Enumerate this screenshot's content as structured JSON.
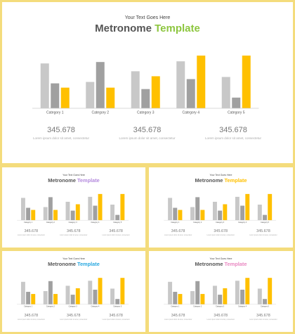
{
  "chart_data": [
    {
      "type": "bar",
      "subtitle": "Your Text Goes Here",
      "title": {
        "text": "Metronome",
        "accent": "Template",
        "accent_color": "#8dc63f"
      },
      "categories": [
        "Category 1",
        "Category 2",
        "Category 3",
        "Category 4",
        "Category 5"
      ],
      "series": [
        {
          "color": "#c8c8c8",
          "values": [
            63,
            37,
            52,
            66,
            44
          ]
        },
        {
          "color": "#a0a0a0",
          "values": [
            35,
            65,
            27,
            41,
            15
          ]
        },
        {
          "color": "#ffc000",
          "values": [
            29,
            29,
            45,
            74,
            74
          ]
        }
      ],
      "ylim": [
        0,
        80
      ],
      "notes": [
        {
          "number": "345.678",
          "text": "Lorem ipsum dolor sit amet, consectetur"
        },
        {
          "number": "345.678",
          "text": "Lorem ipsum dolor sit amet, consectetur"
        },
        {
          "number": "345.678",
          "text": "Lorem ipsum dolor sit amet, consectetur"
        }
      ]
    },
    {
      "type": "bar",
      "subtitle": "Your Text Goes Here",
      "title": {
        "text": "Metronome",
        "accent": "Template",
        "accent_color": "#b388dd"
      },
      "categories": [
        "Category 1",
        "Category 2",
        "Category 3",
        "Category 4",
        "Category 5"
      ],
      "series": [
        {
          "color": "#c8c8c8",
          "values": [
            63,
            37,
            52,
            66,
            44
          ]
        },
        {
          "color": "#a0a0a0",
          "values": [
            35,
            65,
            27,
            41,
            15
          ]
        },
        {
          "color": "#ffc000",
          "values": [
            29,
            29,
            45,
            74,
            74
          ]
        }
      ],
      "ylim": [
        0,
        80
      ],
      "notes": [
        {
          "number": "345.678",
          "text": "Lorem ipsum dolor sit amet, consectetur"
        },
        {
          "number": "345.678",
          "text": "Lorem ipsum dolor sit amet, consectetur"
        },
        {
          "number": "345.678",
          "text": "Lorem ipsum dolor sit amet, consectetur"
        }
      ]
    },
    {
      "type": "bar",
      "subtitle": "Your Text Goes Here",
      "title": {
        "text": "Metronome",
        "accent": "Template",
        "accent_color": "#ffc000"
      },
      "categories": [
        "Category 1",
        "Category 2",
        "Category 3",
        "Category 4",
        "Category 5"
      ],
      "series": [
        {
          "color": "#c8c8c8",
          "values": [
            63,
            37,
            52,
            66,
            44
          ]
        },
        {
          "color": "#a0a0a0",
          "values": [
            35,
            65,
            27,
            41,
            15
          ]
        },
        {
          "color": "#ffc000",
          "values": [
            29,
            29,
            45,
            74,
            74
          ]
        }
      ],
      "ylim": [
        0,
        80
      ],
      "notes": [
        {
          "number": "345.678",
          "text": "Lorem ipsum dolor sit amet, consectetur"
        },
        {
          "number": "345.678",
          "text": "Lorem ipsum dolor sit amet, consectetur"
        },
        {
          "number": "345.678",
          "text": "Lorem ipsum dolor sit amet, consectetur"
        }
      ]
    },
    {
      "type": "bar",
      "subtitle": "Your Text Goes Here",
      "title": {
        "text": "Metronome",
        "accent": "Template",
        "accent_color": "#29a8e0"
      },
      "categories": [
        "Category 1",
        "Category 2",
        "Category 3",
        "Category 4",
        "Category 5"
      ],
      "series": [
        {
          "color": "#c8c8c8",
          "values": [
            63,
            37,
            52,
            66,
            44
          ]
        },
        {
          "color": "#a0a0a0",
          "values": [
            35,
            65,
            27,
            41,
            15
          ]
        },
        {
          "color": "#ffc000",
          "values": [
            29,
            29,
            45,
            74,
            74
          ]
        }
      ],
      "ylim": [
        0,
        80
      ],
      "notes": [
        {
          "number": "345.678",
          "text": "Lorem ipsum dolor sit amet, consectetur"
        },
        {
          "number": "345.678",
          "text": "Lorem ipsum dolor sit amet, consectetur"
        },
        {
          "number": "345.678",
          "text": "Lorem ipsum dolor sit amet, consectetur"
        }
      ]
    },
    {
      "type": "bar",
      "subtitle": "Your Text Goes Here",
      "title": {
        "text": "Metronome",
        "accent": "Template",
        "accent_color": "#e989c2"
      },
      "categories": [
        "Category 1",
        "Category 2",
        "Category 3",
        "Category 4",
        "Category 5"
      ],
      "series": [
        {
          "color": "#c8c8c8",
          "values": [
            63,
            37,
            52,
            66,
            44
          ]
        },
        {
          "color": "#a0a0a0",
          "values": [
            35,
            65,
            27,
            41,
            15
          ]
        },
        {
          "color": "#ffc000",
          "values": [
            29,
            29,
            45,
            74,
            74
          ]
        }
      ],
      "ylim": [
        0,
        80
      ],
      "notes": [
        {
          "number": "345.678",
          "text": "Lorem ipsum dolor sit amet, consectetur"
        },
        {
          "number": "345.678",
          "text": "Lorem ipsum dolor sit amet, consectetur"
        },
        {
          "number": "345.678",
          "text": "Lorem ipsum dolor sit amet, consectetur"
        }
      ]
    }
  ]
}
